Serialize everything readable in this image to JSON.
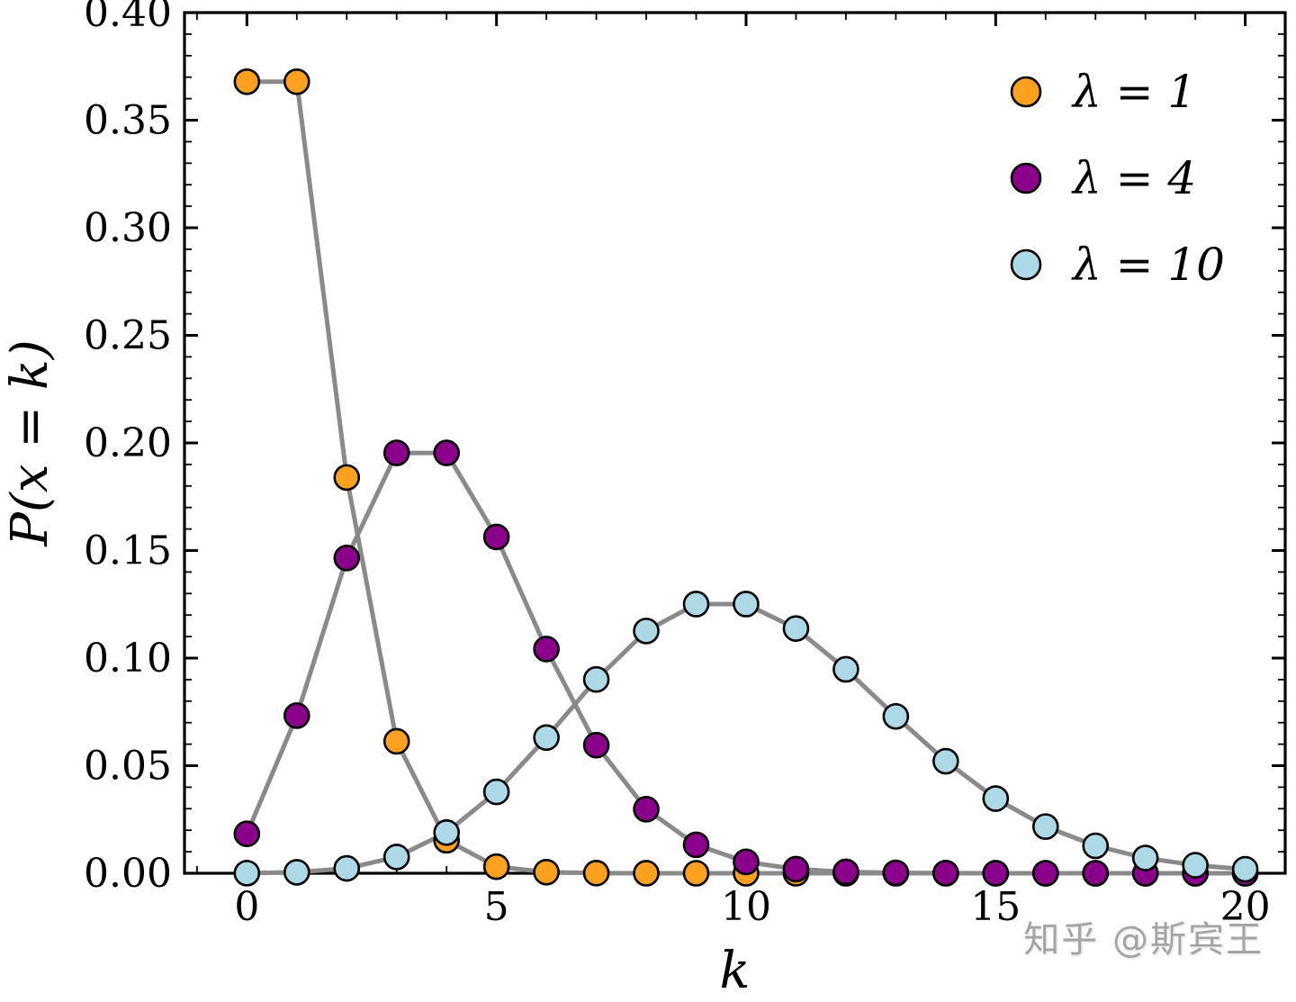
{
  "figure": {
    "background": "#ffffff",
    "watermark_text": "知乎 @斯宾王"
  },
  "chart_data": {
    "type": "line",
    "title": "",
    "xlabel": "k",
    "ylabel": "P(x = k)",
    "xlim": [
      -1.25,
      20.8
    ],
    "ylim": [
      0,
      0.4
    ],
    "xticks": [
      0,
      5,
      10,
      15,
      20
    ],
    "xtick_labels": [
      "0",
      "5",
      "10",
      "15",
      "20"
    ],
    "yticks": [
      0,
      0.05,
      0.1,
      0.15,
      0.2,
      0.25,
      0.3,
      0.35,
      0.4
    ],
    "ytick_labels": [
      "0.00",
      "0.05",
      "0.10",
      "0.15",
      "0.20",
      "0.25",
      "0.30",
      "0.35",
      "0.40"
    ],
    "x_minor_step": 1,
    "y_minor_step": 0.01,
    "grid": false,
    "legend_position": "upper-right",
    "line_color": "#8a8a8a",
    "marker_edge_color": "#000000",
    "x": [
      0,
      1,
      2,
      3,
      4,
      5,
      6,
      7,
      8,
      9,
      10,
      11,
      12,
      13,
      14,
      15,
      16,
      17,
      18,
      19,
      20
    ],
    "series": [
      {
        "name": "λ = 1",
        "color": "#FBA01F",
        "values": [
          0.36788,
          0.36788,
          0.18394,
          0.06131,
          0.01533,
          0.00307,
          0.00051,
          7e-05,
          1e-05,
          1e-06,
          0,
          0,
          0,
          0,
          0,
          0,
          0,
          0,
          0,
          0,
          0
        ]
      },
      {
        "name": "λ = 4",
        "color": "#8B008B",
        "values": [
          0.01832,
          0.07326,
          0.14653,
          0.19537,
          0.19537,
          0.15629,
          0.1042,
          0.05954,
          0.02977,
          0.01323,
          0.00529,
          0.00192,
          0.00064,
          0.0002,
          6e-05,
          2e-05,
          4e-06,
          1e-06,
          0,
          0,
          0
        ]
      },
      {
        "name": "λ = 10",
        "color": "#ADD8E6",
        "values": [
          5e-05,
          0.00045,
          0.00227,
          0.00757,
          0.01892,
          0.03783,
          0.06306,
          0.09008,
          0.1126,
          0.12511,
          0.12511,
          0.11374,
          0.09478,
          0.07291,
          0.05208,
          0.03472,
          0.0217,
          0.01276,
          0.00709,
          0.00373,
          0.00187
        ]
      }
    ]
  }
}
